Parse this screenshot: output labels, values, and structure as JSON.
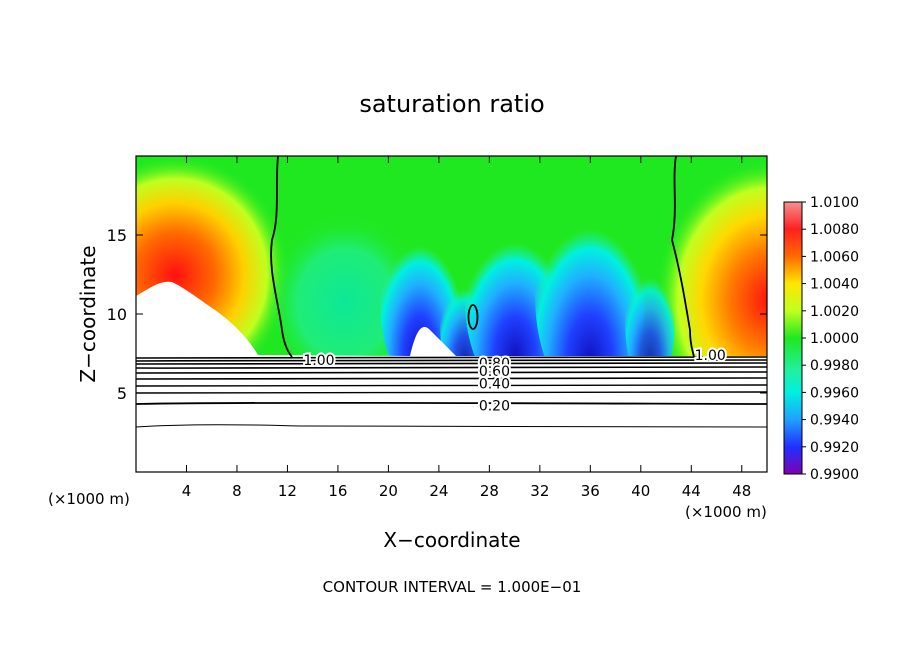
{
  "chart_data": {
    "type": "heatmap",
    "title": "saturation ratio",
    "xlabel": "X−coordinate",
    "ylabel": "Z−coordinate",
    "x_unit_left": "(×1000 m)",
    "x_unit_right": "(×1000 m)",
    "footer": "CONTOUR INTERVAL = 1.000E−01",
    "xlim": [
      0,
      50
    ],
    "ylim": [
      0,
      20
    ],
    "x_ticks": [
      4,
      8,
      12,
      16,
      20,
      24,
      28,
      32,
      36,
      40,
      44,
      48
    ],
    "y_ticks": [
      5,
      10,
      15
    ],
    "colorbar": {
      "min": 0.99,
      "max": 1.01,
      "labels": [
        "1.0100",
        "1.0080",
        "1.0060",
        "1.0040",
        "1.0020",
        "1.0000",
        "0.9980",
        "0.9960",
        "0.9940",
        "0.9920",
        "0.9900"
      ],
      "colors": [
        "#e8007a",
        "#f49090",
        "#ff2020",
        "#ff6a00",
        "#ffa800",
        "#ffe600",
        "#c0ff20",
        "#20e820",
        "#20f0a0",
        "#00f0e0",
        "#20a0ff",
        "#2030ff",
        "#1010c0",
        "#8000b0"
      ]
    },
    "contour_labels": [
      {
        "text": "1.00",
        "x": 14.5,
        "y": 7.1
      },
      {
        "text": "1.00",
        "x": 45.5,
        "y": 7.4
      },
      {
        "text": "0.80",
        "x": 28.4,
        "y": 6.9
      },
      {
        "text": "0.60",
        "x": 28.4,
        "y": 6.4
      },
      {
        "text": "0.40",
        "x": 28.4,
        "y": 5.6
      },
      {
        "text": "0.20",
        "x": 28.4,
        "y": 4.2
      }
    ],
    "ground_contour_levels_y": [
      7.1,
      6.95,
      6.85,
      6.7,
      6.4,
      6.1,
      5.7,
      5.3,
      4.5,
      2.9
    ]
  }
}
